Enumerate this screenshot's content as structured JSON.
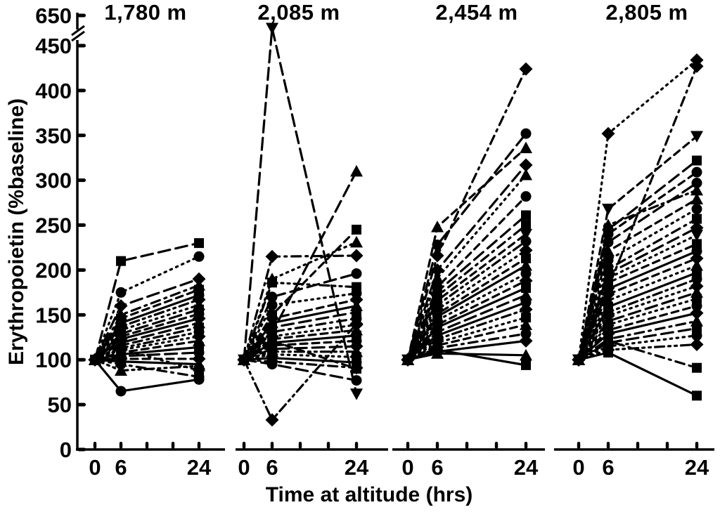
{
  "chart_data": {
    "type": "line",
    "title": "",
    "xlabel": "Time at altitude (hrs)",
    "ylabel": "Erythropoietin (%baseline)",
    "x": [
      0,
      6,
      24
    ],
    "x_ticks": [
      0,
      6,
      12,
      18,
      24
    ],
    "x_tick_labels": [
      "0",
      "6",
      "",
      "",
      "24"
    ],
    "y_ticks": [
      0,
      50,
      100,
      150,
      200,
      250,
      300,
      350,
      400,
      450
    ],
    "y_top_tick": {
      "value": 650,
      "label": "650"
    },
    "y_axis_break": {
      "gap_between": [
        450,
        650
      ]
    },
    "ylim_display": [
      0,
      450
    ],
    "offscale_plotted_above": 455,
    "grid": "off",
    "legend": "none",
    "colors": {
      "ink": "#000000",
      "background": "#ffffff"
    },
    "panels": [
      {
        "title": "1,780 m",
        "series": [
          {
            "m": "square",
            "d": "longdash",
            "v": [
              100,
              210,
              230
            ]
          },
          {
            "m": "circle",
            "d": "dotted",
            "v": [
              100,
              175,
              215
            ]
          },
          {
            "m": "diamond",
            "d": "longdash",
            "v": [
              100,
              160,
              190
            ]
          },
          {
            "m": "utriangle",
            "d": "dashdot",
            "v": [
              100,
              150,
              183
            ]
          },
          {
            "m": "square",
            "d": "dash",
            "v": [
              100,
              146,
              178
            ]
          },
          {
            "m": "circle",
            "d": "solid",
            "v": [
              100,
              141,
              172
            ]
          },
          {
            "m": "diamond",
            "d": "dashdotdot",
            "v": [
              100,
              137,
              167
            ]
          },
          {
            "m": "utriangle",
            "d": "dotted",
            "v": [
              100,
              133,
              161
            ]
          },
          {
            "m": "square",
            "d": "longdash",
            "v": [
              100,
              129,
              156
            ]
          },
          {
            "m": "circle",
            "d": "dash",
            "v": [
              100,
              126,
              151
            ]
          },
          {
            "m": "diamond",
            "d": "solid",
            "v": [
              100,
              123,
              146
            ]
          },
          {
            "m": "utriangle",
            "d": "longdash",
            "v": [
              100,
              119,
              141
            ]
          },
          {
            "m": "square",
            "d": "dashdot",
            "v": [
              100,
              116,
              136
            ]
          },
          {
            "m": "circle",
            "d": "dashdotdot",
            "v": [
              100,
              113,
              131
            ]
          },
          {
            "m": "diamond",
            "d": "dotted",
            "v": [
              100,
              111,
              126
            ]
          },
          {
            "m": "utriangle",
            "d": "dash",
            "v": [
              100,
              108,
              121
            ]
          },
          {
            "m": "square",
            "d": "solid",
            "v": [
              100,
              106,
              114
            ]
          },
          {
            "m": "circle",
            "d": "longdash",
            "v": [
              100,
              104,
              108
            ]
          },
          {
            "m": "diamond",
            "d": "dash",
            "v": [
              100,
              101,
              101
            ]
          },
          {
            "m": "utriangle",
            "d": "solid",
            "v": [
              100,
              98,
              95
            ]
          },
          {
            "m": "square",
            "d": "dotted",
            "v": [
              100,
              112,
              88
            ]
          },
          {
            "m": "circle",
            "d": "dashdot",
            "v": [
              100,
              95,
              81
            ]
          },
          {
            "m": "utriangle",
            "d": "dashdotdot",
            "v": [
              100,
              88,
              93
            ]
          },
          {
            "m": "circle",
            "d": "solid",
            "v": [
              100,
              65,
              78
            ]
          }
        ]
      },
      {
        "title": "2,085 m",
        "series": [
          {
            "m": "vtriangle",
            "d": "longdash",
            "v": [
              100,
              480,
              62
            ]
          },
          {
            "m": "utriangle",
            "d": "longdash",
            "v": [
              100,
              130,
              310
            ]
          },
          {
            "m": "square",
            "d": "dash",
            "v": [
              100,
              150,
              245
            ]
          },
          {
            "m": "utriangle",
            "d": "dotted",
            "v": [
              100,
              190,
              231
            ]
          },
          {
            "m": "diamond",
            "d": "dashdot",
            "v": [
              100,
              215,
              216
            ]
          },
          {
            "m": "circle",
            "d": "longdash",
            "v": [
              100,
              170,
              196
            ]
          },
          {
            "m": "square",
            "d": "dashdotdot",
            "v": [
              100,
              186,
              181
            ]
          },
          {
            "m": "circle",
            "d": "dotted",
            "v": [
              100,
              161,
              174
            ]
          },
          {
            "m": "diamond",
            "d": "dash",
            "v": [
              100,
              146,
              167
            ]
          },
          {
            "m": "utriangle",
            "d": "solid",
            "v": [
              100,
              141,
              160
            ]
          },
          {
            "m": "square",
            "d": "longdash",
            "v": [
              100,
              136,
              153
            ]
          },
          {
            "m": "circle",
            "d": "dashdot",
            "v": [
              100,
              131,
              146
            ]
          },
          {
            "m": "diamond",
            "d": "dotted",
            "v": [
              100,
              126,
              139
            ]
          },
          {
            "m": "utriangle",
            "d": "dash",
            "v": [
              100,
              123,
              133
            ]
          },
          {
            "m": "square",
            "d": "solid",
            "v": [
              100,
              119,
              127
            ]
          },
          {
            "m": "circle",
            "d": "dash",
            "v": [
              100,
              116,
              121
            ]
          },
          {
            "m": "diamond",
            "d": "longdash",
            "v": [
              100,
              112,
              115
            ]
          },
          {
            "m": "utriangle",
            "d": "dashdotdot",
            "v": [
              100,
              109,
              109
            ]
          },
          {
            "m": "square",
            "d": "dotted",
            "v": [
              100,
              106,
              103
            ]
          },
          {
            "m": "circle",
            "d": "solid",
            "v": [
              100,
              102,
              97
            ]
          },
          {
            "m": "diamond",
            "d": "dashdot",
            "v": [
              100,
              98,
              91
            ]
          },
          {
            "m": "square",
            "d": "dash",
            "v": [
              100,
              121,
              90
            ]
          },
          {
            "m": "circle",
            "d": "longdash",
            "v": [
              100,
              95,
              77
            ]
          },
          {
            "m": "diamond",
            "d": "dashdotdot",
            "v": [
              100,
              33,
              140
            ]
          }
        ]
      },
      {
        "title": "2,454 m",
        "series": [
          {
            "m": "diamond",
            "d": "dashdot",
            "v": [
              100,
              216,
              424
            ]
          },
          {
            "m": "circle",
            "d": "longdash",
            "v": [
              100,
              228,
              352
            ]
          },
          {
            "m": "utriangle",
            "d": "dash",
            "v": [
              100,
              248,
              336
            ]
          },
          {
            "m": "diamond",
            "d": "longdash",
            "v": [
              100,
              200,
              317
            ]
          },
          {
            "m": "utriangle",
            "d": "dotted",
            "v": [
              100,
              191,
              306
            ]
          },
          {
            "m": "circle",
            "d": "dash",
            "v": [
              100,
              181,
              282
            ]
          },
          {
            "m": "square",
            "d": "longdash",
            "v": [
              100,
              176,
              261
            ]
          },
          {
            "m": "square",
            "d": "dashdot",
            "v": [
              100,
              171,
              250
            ]
          },
          {
            "m": "vtriangle",
            "d": "dash",
            "v": [
              100,
              166,
              240
            ]
          },
          {
            "m": "circle",
            "d": "dashdotdot",
            "v": [
              100,
              161,
              232
            ]
          },
          {
            "m": "diamond",
            "d": "dotted",
            "v": [
              100,
              156,
              222
            ]
          },
          {
            "m": "square",
            "d": "dash",
            "v": [
              100,
              151,
              213
            ]
          },
          {
            "m": "utriangle",
            "d": "solid",
            "v": [
              100,
              148,
              205
            ]
          },
          {
            "m": "circle",
            "d": "dotted",
            "v": [
              100,
              144,
              196
            ]
          },
          {
            "m": "diamond",
            "d": "dash",
            "v": [
              100,
              139,
              188
            ]
          },
          {
            "m": "square",
            "d": "solid",
            "v": [
              100,
              136,
              180
            ]
          },
          {
            "m": "utriangle",
            "d": "longdash",
            "v": [
              100,
              131,
              172
            ]
          },
          {
            "m": "circle",
            "d": "solid",
            "v": [
              100,
              127,
              164
            ]
          },
          {
            "m": "diamond",
            "d": "dashdotdot",
            "v": [
              100,
              123,
              156
            ]
          },
          {
            "m": "square",
            "d": "dotted",
            "v": [
              100,
              119,
              147
            ]
          },
          {
            "m": "utriangle",
            "d": "dash",
            "v": [
              100,
              116,
              139
            ]
          },
          {
            "m": "circle",
            "d": "dashdot",
            "v": [
              100,
              113,
              129
            ]
          },
          {
            "m": "diamond",
            "d": "solid",
            "v": [
              100,
              109,
              121
            ]
          },
          {
            "m": "utriangle",
            "d": "solid",
            "v": [
              100,
              107,
              105
            ]
          },
          {
            "m": "square",
            "d": "solid",
            "v": [
              100,
              111,
              94
            ]
          }
        ]
      },
      {
        "title": "2,805 m",
        "series": [
          {
            "m": "diamond",
            "d": "dotted",
            "v": [
              100,
              352,
              434
            ]
          },
          {
            "m": "diamond",
            "d": "dashdot",
            "v": [
              100,
              180,
              427
            ]
          },
          {
            "m": "vtriangle",
            "d": "dash",
            "v": [
              100,
              268,
              349
            ]
          },
          {
            "m": "square",
            "d": "longdash",
            "v": [
              100,
              245,
              322
            ]
          },
          {
            "m": "circle",
            "d": "dash",
            "v": [
              100,
              240,
              309
            ]
          },
          {
            "m": "circle",
            "d": "longdash",
            "v": [
              100,
              231,
              297
            ]
          },
          {
            "m": "utriangle",
            "d": "dashdotdot",
            "v": [
              100,
              250,
              289
            ]
          },
          {
            "m": "utriangle",
            "d": "dash",
            "v": [
              100,
              221,
              279
            ]
          },
          {
            "m": "circle",
            "d": "dotted",
            "v": [
              100,
              211,
              268
            ]
          },
          {
            "m": "square",
            "d": "dashdot",
            "v": [
              100,
              201,
              257
            ]
          },
          {
            "m": "diamond",
            "d": "longdash",
            "v": [
              100,
              196,
              247
            ]
          },
          {
            "m": "vtriangle",
            "d": "dotted",
            "v": [
              100,
              191,
              239
            ]
          },
          {
            "m": "square",
            "d": "dash",
            "v": [
              100,
              186,
              229
            ]
          },
          {
            "m": "circle",
            "d": "solid",
            "v": [
              100,
              179,
              221
            ]
          },
          {
            "m": "diamond",
            "d": "dash",
            "v": [
              100,
              173,
              213
            ]
          },
          {
            "m": "utriangle",
            "d": "dotted",
            "v": [
              100,
              166,
              205
            ]
          },
          {
            "m": "square",
            "d": "solid",
            "v": [
              100,
              159,
              197
            ]
          },
          {
            "m": "circle",
            "d": "dashdotdot",
            "v": [
              100,
              153,
              190
            ]
          },
          {
            "m": "diamond",
            "d": "dotted",
            "v": [
              100,
              149,
              182
            ]
          },
          {
            "m": "utriangle",
            "d": "longdash",
            "v": [
              100,
              143,
              175
            ]
          },
          {
            "m": "square",
            "d": "dotted",
            "v": [
              100,
              139,
              168
            ]
          },
          {
            "m": "circle",
            "d": "dash",
            "v": [
              100,
              133,
              160
            ]
          },
          {
            "m": "diamond",
            "d": "solid",
            "v": [
              100,
              129,
              152
            ]
          },
          {
            "m": "utriangle",
            "d": "dashdot",
            "v": [
              100,
              123,
              143
            ]
          },
          {
            "m": "square",
            "d": "longdash",
            "v": [
              100,
              119,
              135
            ]
          },
          {
            "m": "circle",
            "d": "dotted",
            "v": [
              100,
              115,
              127
            ]
          },
          {
            "m": "diamond",
            "d": "dashdotdot",
            "v": [
              100,
              111,
              117
            ]
          },
          {
            "m": "square",
            "d": "dashdot",
            "v": [
              100,
              121,
              91
            ]
          },
          {
            "m": "square",
            "d": "solid",
            "v": [
              100,
              108,
              60
            ]
          }
        ]
      }
    ]
  }
}
